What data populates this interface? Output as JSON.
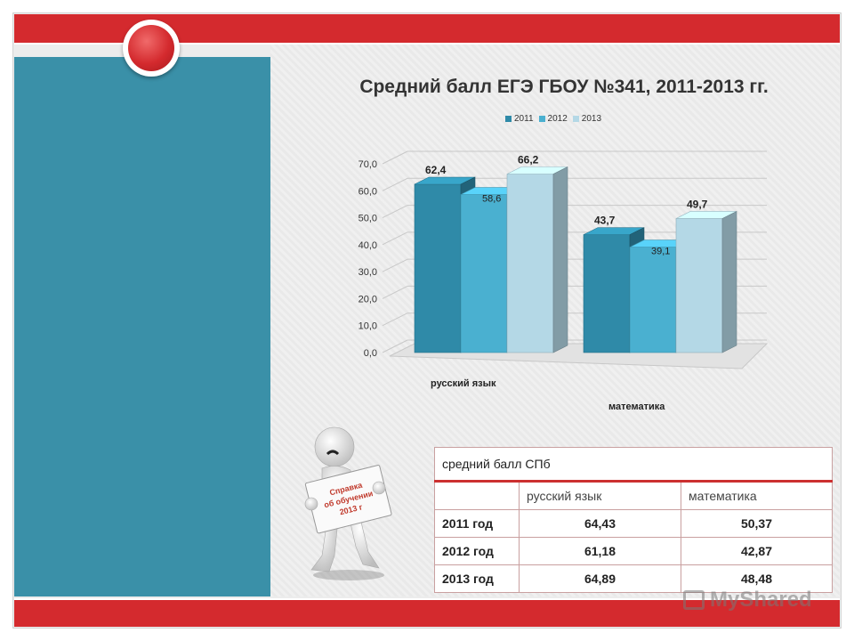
{
  "chart_data": {
    "type": "bar",
    "title": "Средний балл ЕГЭ ГБОУ №341, 2011-2013 гг.",
    "categories": [
      "русский язык",
      "математика"
    ],
    "series": [
      {
        "name": "2011",
        "values": [
          62.4,
          43.7
        ],
        "labels": [
          "62,4",
          "43,7"
        ],
        "color": "#2f8aa8"
      },
      {
        "name": "2012",
        "values": [
          58.6,
          39.1
        ],
        "labels": [
          "58,6",
          "39,1"
        ],
        "color": "#4ab0d0"
      },
      {
        "name": "2013",
        "values": [
          66.2,
          49.7
        ],
        "labels": [
          "66,2",
          "49,7"
        ],
        "color": "#b4d8e6"
      }
    ],
    "yticks": [
      "0,0",
      "10,0",
      "20,0",
      "30,0",
      "40,0",
      "50,0",
      "60,0",
      "70,0"
    ],
    "ylim": [
      0,
      70
    ],
    "grid": true,
    "legend_position": "top"
  },
  "table": {
    "title": "средний балл СПб",
    "headers": [
      "",
      "русский язык",
      "математика"
    ],
    "rows": [
      {
        "year": "2011 год",
        "russian": "64,43",
        "math": "50,37"
      },
      {
        "year": "2012 год",
        "russian": "61,18",
        "math": "42,87"
      },
      {
        "year": "2013 год",
        "russian": "64,89",
        "math": "48,48"
      }
    ]
  },
  "sign": {
    "line1": "Справка",
    "line2": "об обучении",
    "line3": "2013 г"
  },
  "watermark": "MyShared"
}
